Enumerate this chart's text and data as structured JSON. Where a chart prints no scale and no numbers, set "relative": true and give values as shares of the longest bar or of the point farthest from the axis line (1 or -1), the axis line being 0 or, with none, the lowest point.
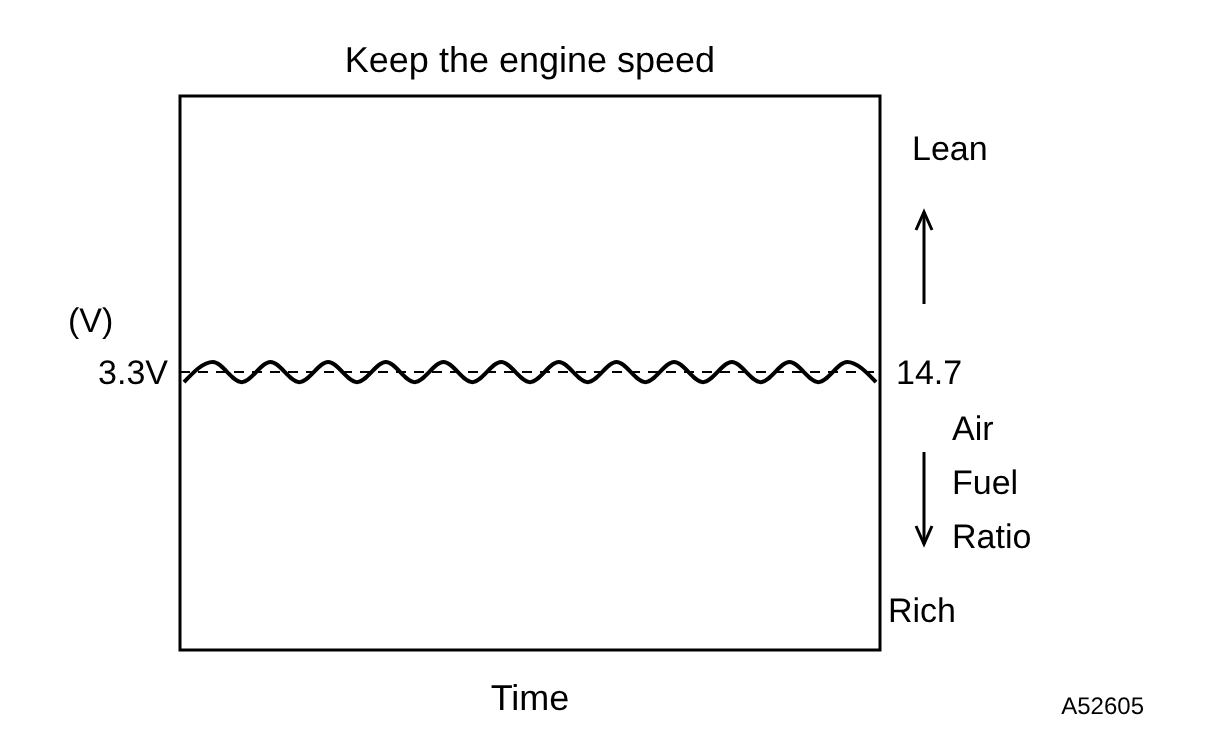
{
  "chart_data": {
    "type": "line",
    "title": "Keep the engine speed",
    "xlabel": "Time",
    "relative": true,
    "categories": [
      null,
      null,
      null,
      null,
      null,
      null,
      null,
      null,
      null,
      null,
      null,
      null,
      null,
      null,
      null,
      null,
      null,
      null,
      null,
      null,
      null,
      null,
      null,
      null,
      null
    ],
    "series": [
      {
        "color": "#000000",
        "values": [
          0.93,
          1,
          0.93,
          1,
          0.93,
          1,
          0.93,
          1,
          0.93,
          1,
          0.93,
          1,
          0.93,
          1,
          0.93,
          1,
          0.93,
          1,
          0.93,
          1,
          0.93,
          1,
          0.93,
          1,
          0.93
        ]
      }
    ],
    "ref_lines": [
      {
        "axis": "y",
        "value": 0.965,
        "line_style": "dashed"
      }
    ],
    "annotations": [
      "(V)",
      "3.3V",
      "14.7",
      "Lean",
      "Air Fuel Ratio",
      "Rich",
      "A52605"
    ],
    "marker": "none",
    "line_style": "solid"
  }
}
